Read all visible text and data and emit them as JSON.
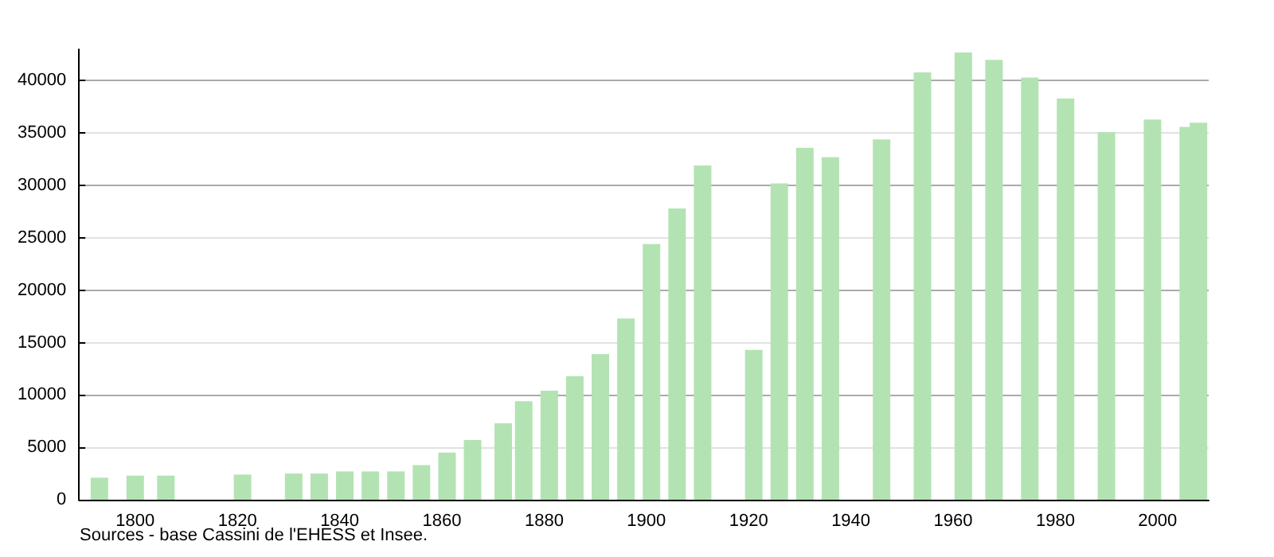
{
  "chart_data": {
    "type": "bar",
    "x": [
      1793,
      1800,
      1806,
      1821,
      1831,
      1836,
      1841,
      1846,
      1851,
      1856,
      1861,
      1866,
      1872,
      1876,
      1881,
      1886,
      1891,
      1896,
      1901,
      1906,
      1911,
      1921,
      1926,
      1931,
      1936,
      1946,
      1954,
      1962,
      1968,
      1975,
      1982,
      1990,
      1999,
      2006,
      2008
    ],
    "values": [
      2100,
      2300,
      2300,
      2400,
      2500,
      2500,
      2700,
      2700,
      2700,
      3300,
      4500,
      5700,
      7300,
      9400,
      10400,
      11800,
      13900,
      17300,
      24400,
      27800,
      31900,
      14300,
      30200,
      33600,
      32700,
      34400,
      40800,
      42700,
      42000,
      40300,
      38300,
      35100,
      36300,
      35600,
      36000
    ],
    "color": "#b3e3b3",
    "xlim": [
      1789,
      2010
    ],
    "xticks": [
      1800,
      1820,
      1840,
      1860,
      1880,
      1900,
      1920,
      1940,
      1960,
      1980,
      2000
    ],
    "ylim": [
      0,
      43000
    ],
    "yticks": [
      0,
      5000,
      10000,
      15000,
      20000,
      25000,
      30000,
      35000,
      40000
    ],
    "grid": "y",
    "annotations": [
      "Sources - base Cassini de l'EHESS et Insee."
    ]
  }
}
